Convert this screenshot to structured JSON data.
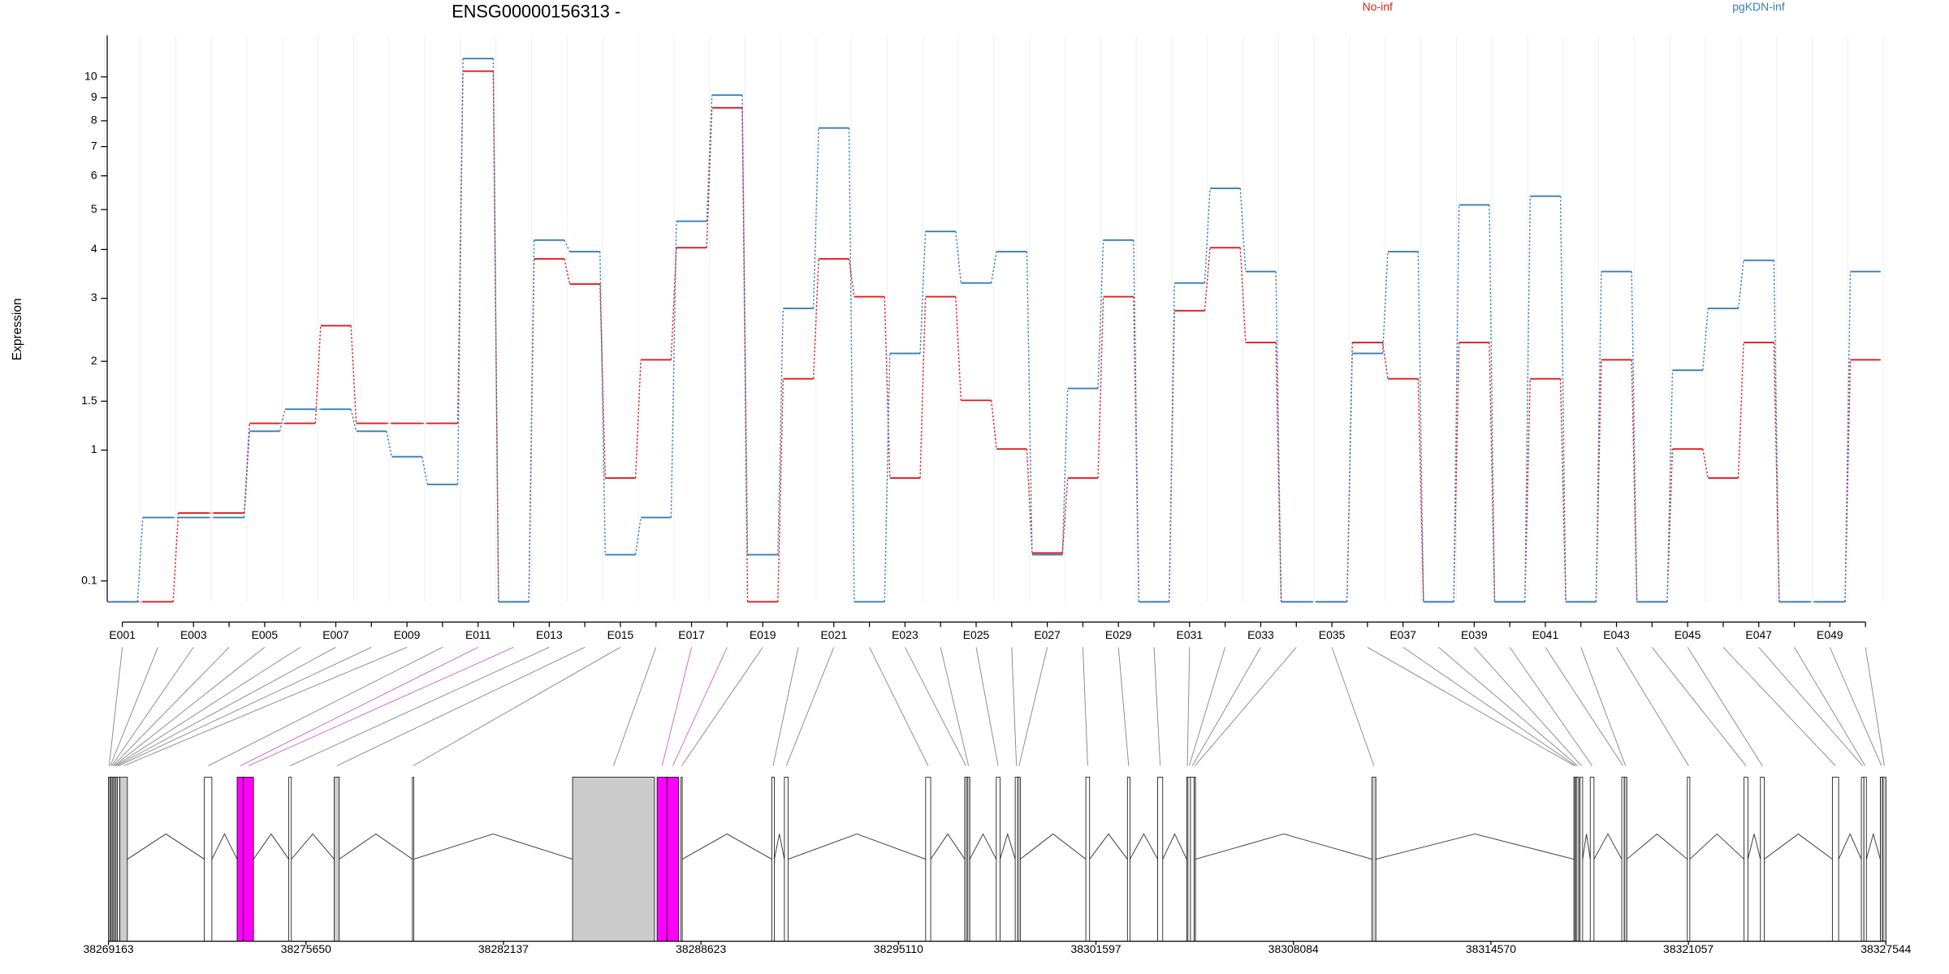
{
  "chart_data": {
    "type": "step",
    "title": "ENSG00000156313 -",
    "y_label": "Expression",
    "y_transform": "log10(x+1)",
    "ylim": [
      0,
      12.3
    ],
    "yticks": [
      0.1,
      1,
      1.5,
      2,
      3,
      4,
      5,
      6,
      7,
      8,
      9,
      10
    ],
    "grid": true,
    "categories": [
      "E001",
      null,
      "E003",
      null,
      "E005",
      null,
      "E007",
      null,
      "E009",
      null,
      "E011",
      null,
      "E013",
      null,
      "E015",
      null,
      "E017",
      null,
      "E019",
      null,
      "E021",
      null,
      "E023",
      null,
      "E025",
      null,
      "E027",
      null,
      "E029",
      null,
      "E031",
      null,
      "E033",
      null,
      "E035",
      null,
      "E037",
      null,
      "E039",
      null,
      "E041",
      null,
      "E043",
      null,
      "E045",
      null,
      "E047",
      null,
      "E049",
      null
    ],
    "series": [
      {
        "name": "No-inf",
        "color": "#e41a1c",
        "values": [
          0,
          0,
          0.5,
          0.5,
          1.26,
          1.26,
          2.53,
          1.26,
          1.26,
          1.26,
          10.29,
          0,
          3.79,
          3.27,
          0.76,
          2.02,
          4.04,
          8.55,
          0,
          1.77,
          3.79,
          3.03,
          0.76,
          3.03,
          1.51,
          1.01,
          0.25,
          0.76,
          3.03,
          0,
          2.78,
          4.04,
          2.27,
          0,
          0,
          2.27,
          1.77,
          0,
          2.27,
          0,
          1.77,
          0,
          2.02,
          0,
          1.01,
          0.76,
          2.27,
          0,
          0,
          2.02
        ]
      },
      {
        "name": "pgKDN-inf",
        "color": "#377eb8",
        "values": [
          0,
          0.47,
          0.47,
          0.47,
          1.18,
          1.41,
          1.41,
          1.18,
          0.94,
          0.71,
          10.96,
          0,
          4.22,
          3.95,
          0.24,
          0.47,
          4.69,
          9.12,
          0.24,
          2.82,
          7.71,
          0,
          2.11,
          4.43,
          3.29,
          3.95,
          0.24,
          1.65,
          4.22,
          0,
          3.29,
          5.61,
          3.52,
          0,
          0,
          2.11,
          3.95,
          0,
          5.13,
          0,
          5.38,
          0,
          3.52,
          0,
          1.88,
          2.82,
          3.76,
          0,
          0,
          3.52
        ]
      }
    ],
    "gene_model": {
      "xlim": [
        38269163,
        38327544
      ],
      "xticks": [
        38269163,
        38275650,
        38282137,
        38288623,
        38295110,
        38301597,
        38308084,
        38314570,
        38321057,
        38327544
      ],
      "exons": [
        {
          "start": 38269163,
          "end": 38269204,
          "color": "#ffffff"
        },
        {
          "start": 38269204,
          "end": 38269246,
          "color": "#ffffff"
        },
        {
          "start": 38269246,
          "end": 38269287,
          "color": "#ffffff"
        },
        {
          "start": 38269287,
          "end": 38269329,
          "color": "#ffffff"
        },
        {
          "start": 38269329,
          "end": 38269370,
          "color": "#ffffff"
        },
        {
          "start": 38269370,
          "end": 38269412,
          "color": "#ffffff"
        },
        {
          "start": 38269412,
          "end": 38269453,
          "color": "#ffffff"
        },
        {
          "start": 38269453,
          "end": 38269536,
          "color": "#ffffff"
        },
        {
          "start": 38269536,
          "end": 38269784,
          "color": "#cccccc"
        },
        {
          "start": 38272311,
          "end": 38272559,
          "color": "#ffffff"
        },
        {
          "start": 38273388,
          "end": 38273595,
          "color": "#ff00ff"
        },
        {
          "start": 38273595,
          "end": 38273926,
          "color": "#ff00ff"
        },
        {
          "start": 38275086,
          "end": 38275169,
          "color": "#ffffff"
        },
        {
          "start": 38276577,
          "end": 38276743,
          "color": "#cccccc"
        },
        {
          "start": 38279145,
          "end": 38279187,
          "color": "#ffffff"
        },
        {
          "start": 38284406,
          "end": 38287098,
          "color": "#cccccc"
        },
        {
          "start": 38287181,
          "end": 38287512,
          "color": "#ff00ff"
        },
        {
          "start": 38287512,
          "end": 38287885,
          "color": "#ff00ff"
        },
        {
          "start": 38287968,
          "end": 38288009,
          "color": "#ffffff"
        },
        {
          "start": 38290950,
          "end": 38291033,
          "color": "#ffffff"
        },
        {
          "start": 38291364,
          "end": 38291488,
          "color": "#ffffff"
        },
        {
          "start": 38296003,
          "end": 38296169,
          "color": "#ffffff"
        },
        {
          "start": 38297287,
          "end": 38297370,
          "color": "#cccccc"
        },
        {
          "start": 38297370,
          "end": 38297453,
          "color": "#cccccc"
        },
        {
          "start": 38298323,
          "end": 38298447,
          "color": "#ffffff"
        },
        {
          "start": 38298944,
          "end": 38299027,
          "color": "#ffffff"
        },
        {
          "start": 38299027,
          "end": 38299110,
          "color": "#cccccc"
        },
        {
          "start": 38301264,
          "end": 38301388,
          "color": "#ffffff"
        },
        {
          "start": 38302630,
          "end": 38302713,
          "color": "#ffffff"
        },
        {
          "start": 38303624,
          "end": 38303790,
          "color": "#ffffff"
        },
        {
          "start": 38304577,
          "end": 38304619,
          "color": "#ffffff"
        },
        {
          "start": 38304619,
          "end": 38304701,
          "color": "#ffffff"
        },
        {
          "start": 38304701,
          "end": 38304826,
          "color": "#ffffff"
        },
        {
          "start": 38304826,
          "end": 38304867,
          "color": "#ffffff"
        },
        {
          "start": 38310666,
          "end": 38310790,
          "color": "#cccccc"
        },
        {
          "start": 38317293,
          "end": 38317334,
          "color": "#ffffff"
        },
        {
          "start": 38317334,
          "end": 38317376,
          "color": "#ffffff"
        },
        {
          "start": 38317376,
          "end": 38317459,
          "color": "#cccccc"
        },
        {
          "start": 38317500,
          "end": 38317583,
          "color": "#ffffff"
        },
        {
          "start": 38317832,
          "end": 38317956,
          "color": "#ffffff"
        },
        {
          "start": 38318867,
          "end": 38318950,
          "color": "#ffffff"
        },
        {
          "start": 38318950,
          "end": 38319033,
          "color": "#cccccc"
        },
        {
          "start": 38321021,
          "end": 38321104,
          "color": "#ffffff"
        },
        {
          "start": 38322885,
          "end": 38323009,
          "color": "#ffffff"
        },
        {
          "start": 38323423,
          "end": 38323547,
          "color": "#ffffff"
        },
        {
          "start": 38325784,
          "end": 38325991,
          "color": "#ffffff"
        },
        {
          "start": 38326737,
          "end": 38326820,
          "color": "#ffffff"
        },
        {
          "start": 38326820,
          "end": 38326902,
          "color": "#ffffff"
        },
        {
          "start": 38327358,
          "end": 38327441,
          "color": "#cccccc"
        },
        {
          "start": 38327441,
          "end": 38327544,
          "color": "#cccccc"
        }
      ]
    }
  }
}
